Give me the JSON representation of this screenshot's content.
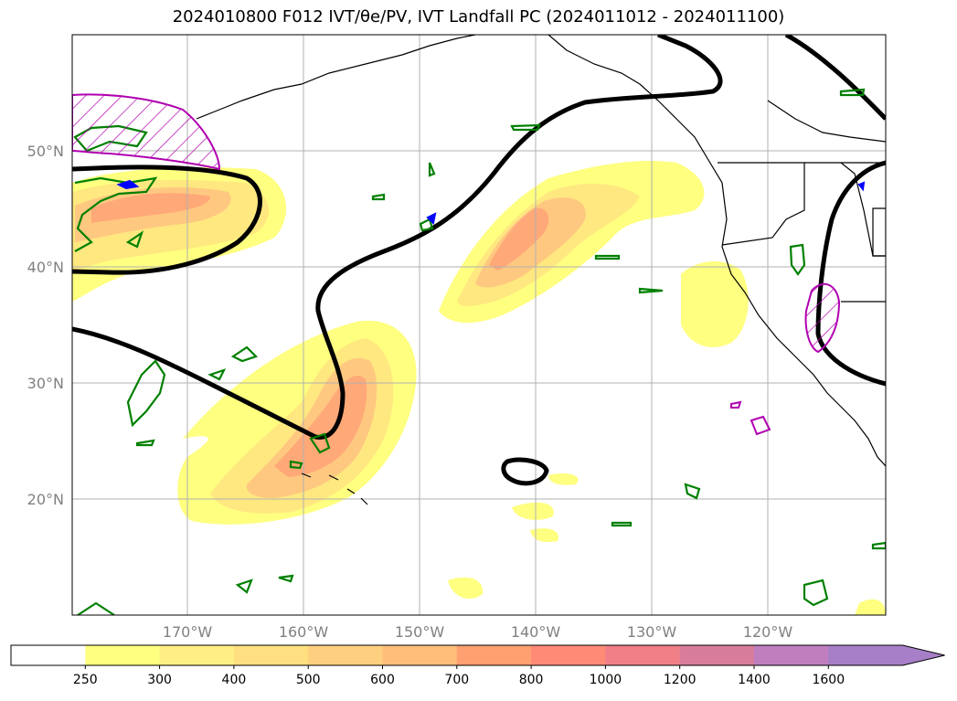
{
  "title": "2024010800 F012 IVT/θe/PV, IVT Landfall PC (2024011012 - 2024011100)",
  "map": {
    "lat_labels": [
      "50°N",
      "40°N",
      "30°N",
      "20°N"
    ],
    "lon_labels": [
      "170°W",
      "160°W",
      "150°W",
      "140°W",
      "130°W",
      "120°W"
    ]
  },
  "colorbar": {
    "levels": [
      "250",
      "300",
      "400",
      "500",
      "600",
      "700",
      "800",
      "1000",
      "1200",
      "1400",
      "1600"
    ],
    "colors": [
      "#ffffff",
      "#ffff80",
      "#ffef85",
      "#ffdf80",
      "#ffcf80",
      "#ffbf7a",
      "#ffa070",
      "#ff8b77",
      "#f07f88",
      "#d87c9c",
      "#bf7fbf",
      "#a77fc8"
    ]
  },
  "colors": {
    "ivt_fill": [
      "#ffff80",
      "#ffe880",
      "#ffc880",
      "#ffa878",
      "#ff8070"
    ],
    "theta_contour": "#000000",
    "pv_contour": "#008000",
    "landfall_pc": "#b000b0",
    "blue_contour": "#0000ff"
  }
}
